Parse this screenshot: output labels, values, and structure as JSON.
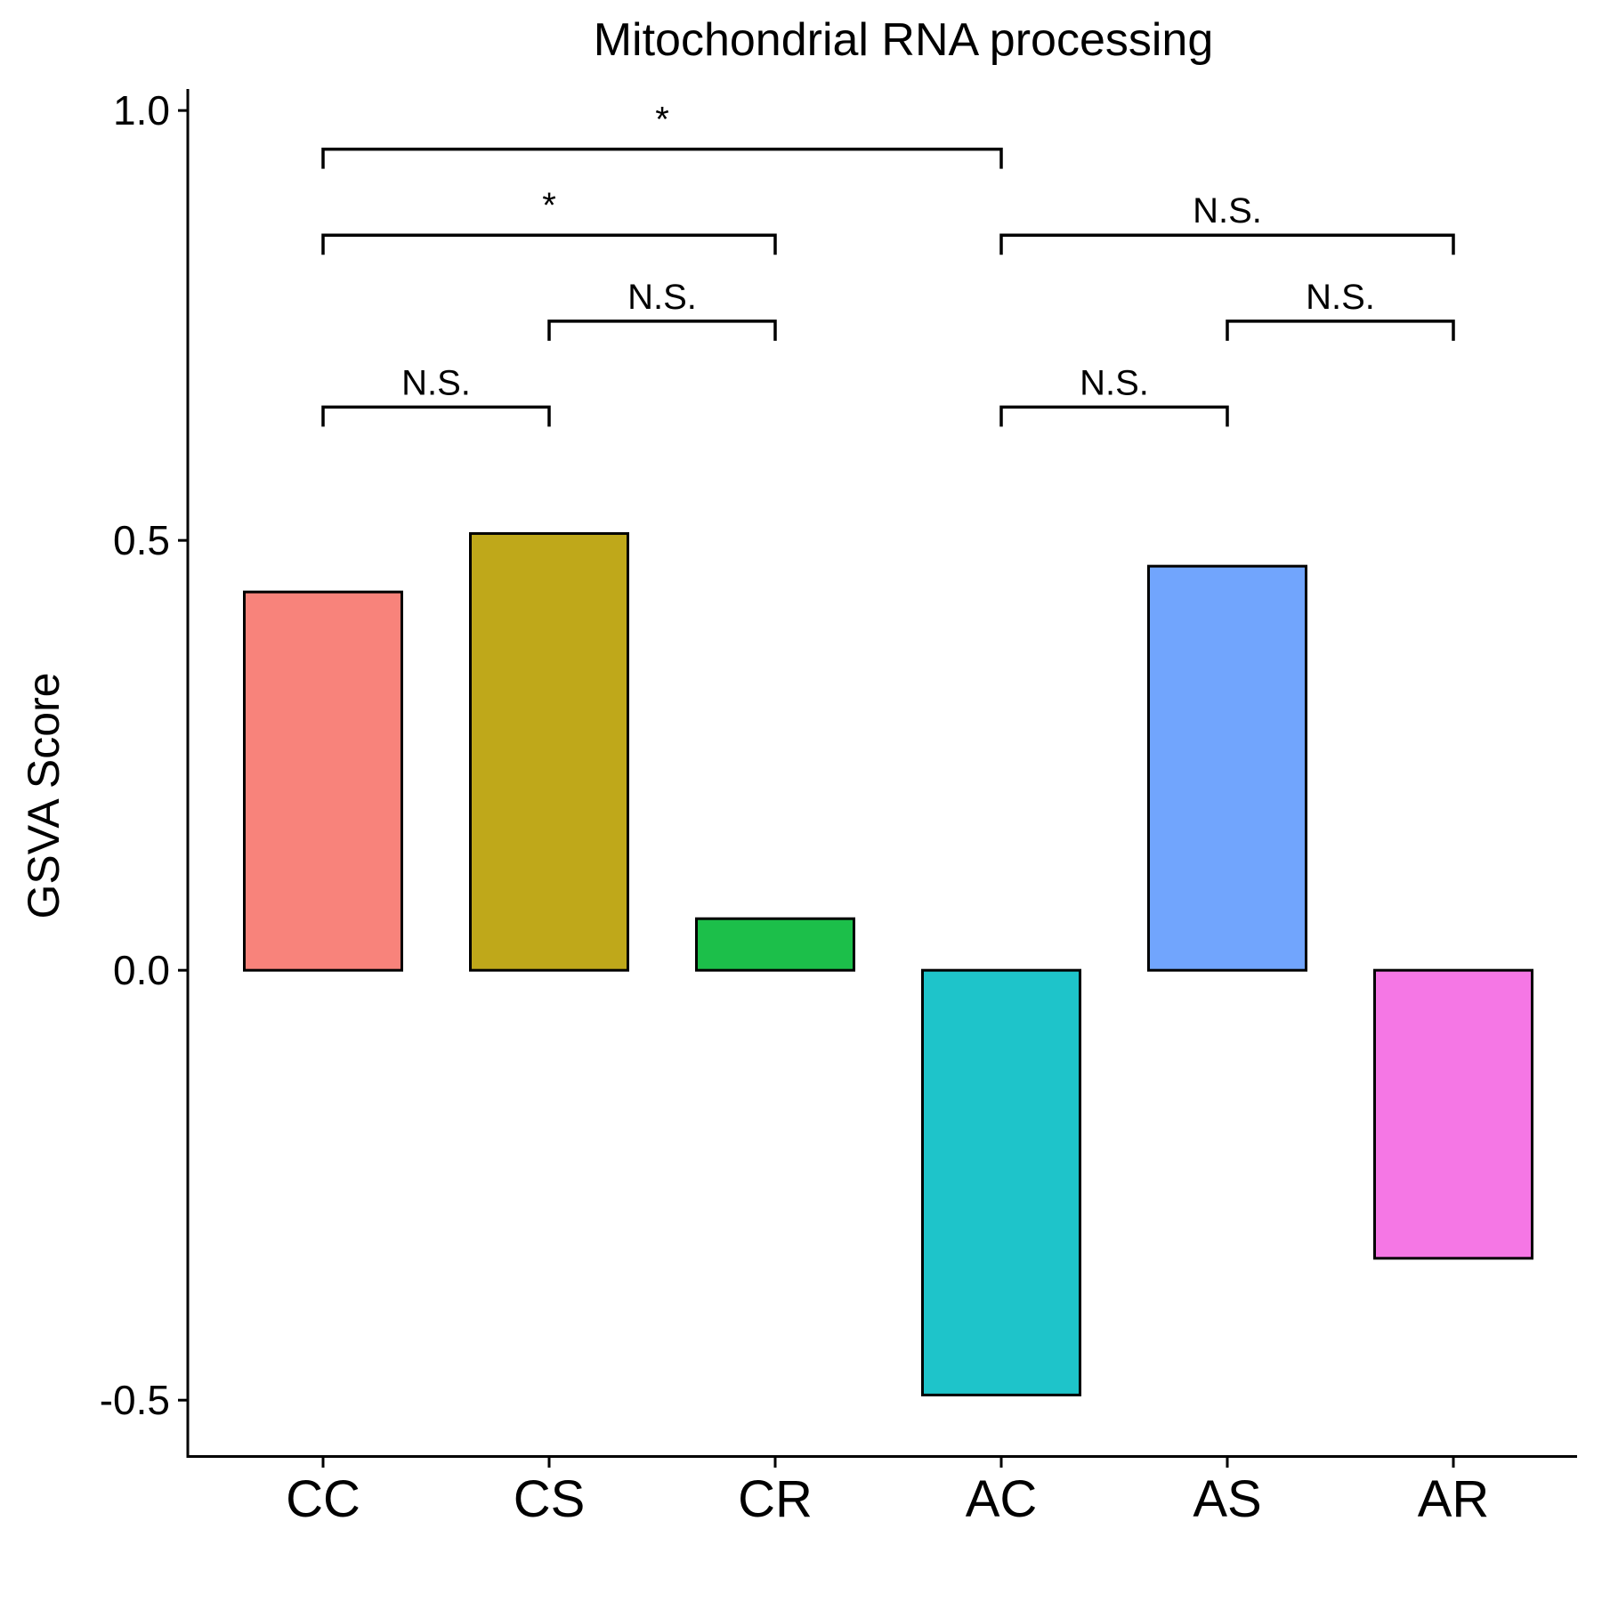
{
  "chart_data": {
    "type": "bar",
    "title": "Mitochondrial RNA processing",
    "xlabel": "",
    "ylabel": "GSVA Score",
    "ylim": [
      -0.565,
      1.025
    ],
    "yticks": [
      -0.5,
      0.0,
      0.5,
      1.0
    ],
    "ytick_labels": [
      "-0.5",
      "0.0",
      "0.5",
      "1.0"
    ],
    "categories": [
      "CC",
      "CS",
      "CR",
      "AC",
      "AS",
      "AR"
    ],
    "values": [
      0.44,
      0.508,
      0.06,
      -0.494,
      0.47,
      -0.335
    ],
    "colors": [
      "#F8837B",
      "#BFA81A",
      "#1CBF4A",
      "#1EC4CA",
      "#71A5FD",
      "#F577E5"
    ],
    "grid": false,
    "legend": "none",
    "comparisons": [
      {
        "from": "CC",
        "to": "AC",
        "label": "*",
        "y": 0.955
      },
      {
        "from": "CC",
        "to": "CR",
        "label": "*",
        "y": 0.855
      },
      {
        "from": "AC",
        "to": "AR",
        "label": "N.S.",
        "y": 0.855
      },
      {
        "from": "CS",
        "to": "CR",
        "label": "N.S.",
        "y": 0.755
      },
      {
        "from": "AS",
        "to": "AR",
        "label": "N.S.",
        "y": 0.755
      },
      {
        "from": "CC",
        "to": "CS",
        "label": "N.S.",
        "y": 0.655
      },
      {
        "from": "AC",
        "to": "AS",
        "label": "N.S.",
        "y": 0.655
      }
    ]
  }
}
